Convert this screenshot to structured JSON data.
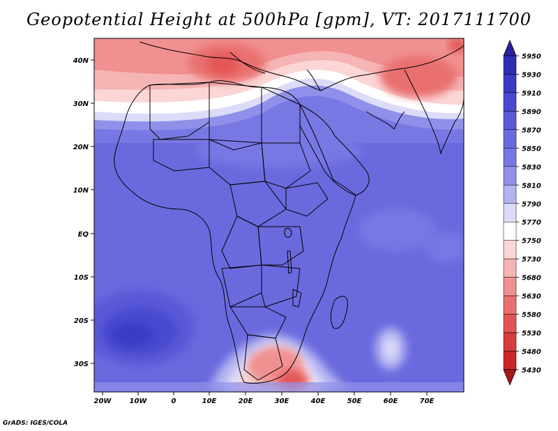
{
  "title": "Geopotential Height at 500hPa [gpm], VT: 2017111700",
  "credit": "GrADS: IGES/COLA",
  "lon_labels": [
    "20W",
    "10W",
    "0",
    "10E",
    "20E",
    "30E",
    "40E",
    "50E",
    "60E",
    "70E"
  ],
  "lat_labels": [
    "40N",
    "30N",
    "20N",
    "10N",
    "EQ",
    "10S",
    "20S",
    "30S"
  ],
  "colorbar": {
    "levels": [
      "5950",
      "5930",
      "5910",
      "5890",
      "5870",
      "5850",
      "5830",
      "5810",
      "5790",
      "5770",
      "5750",
      "5730",
      "5680",
      "5630",
      "5580",
      "5530",
      "5480",
      "5430"
    ],
    "colors": [
      "#2b1fa0",
      "#2e2eb4",
      "#3a3ac4",
      "#4848d0",
      "#5a5ad8",
      "#6a6ade",
      "#7878e4",
      "#9090ea",
      "#b4b4f2",
      "#dcdcf8",
      "#ffffff",
      "#fcd6d6",
      "#f6b4b4",
      "#f09090",
      "#ea7070",
      "#e25454",
      "#d83c3c",
      "#c82828",
      "#a81818"
    ]
  },
  "map": {
    "lon_range": [
      -22,
      80
    ],
    "lat_range": [
      -37,
      45
    ],
    "variable": "Geopotential Height",
    "level": "500hPa",
    "units": "gpm",
    "valid_time": "2017111700"
  }
}
